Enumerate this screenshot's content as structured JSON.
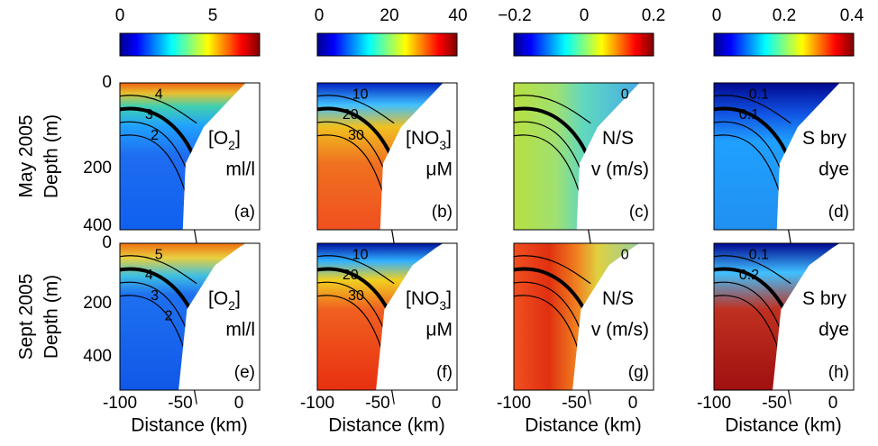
{
  "colorbars": [
    {
      "ticks": [
        "0",
        "5"
      ]
    },
    {
      "ticks": [
        "0",
        "20",
        "40"
      ]
    },
    {
      "ticks": [
        "−0.2",
        "0",
        "0.2"
      ]
    },
    {
      "ticks": [
        "0",
        "0.2",
        "0.4"
      ]
    }
  ],
  "rows": [
    {
      "label": "May 2005",
      "axis_label": "Depth (m)",
      "depth_ticks": [
        "0",
        "200",
        "400"
      ]
    },
    {
      "label": "Sept 2005",
      "axis_label": "Depth (m)",
      "depth_ticks": [
        "0",
        "200",
        "400"
      ]
    }
  ],
  "panels": [
    [
      {
        "name_parts": [
          "[O",
          "2",
          "]"
        ],
        "unit": "ml/l",
        "letter": "(a)",
        "contour_labels": [
          "4",
          "3",
          "2"
        ]
      },
      {
        "name_parts": [
          "[NO",
          "3",
          "]"
        ],
        "unit": "μM",
        "letter": "(b)",
        "contour_labels": [
          "10",
          "20",
          "30"
        ]
      },
      {
        "name_parts": [
          "N/S"
        ],
        "unit": "v (m/s)",
        "letter": "(c)",
        "contour_labels": [
          "0"
        ]
      },
      {
        "name_parts": [
          "S bry"
        ],
        "unit": "dye",
        "letter": "(d)",
        "contour_labels": [
          "0.1",
          "0.1"
        ]
      }
    ],
    [
      {
        "name_parts": [
          "[O",
          "2",
          "]"
        ],
        "unit": "ml/l",
        "letter": "(e)",
        "contour_labels": [
          "5",
          "4",
          "3",
          "2"
        ]
      },
      {
        "name_parts": [
          "[NO",
          "3",
          "]"
        ],
        "unit": "μM",
        "letter": "(f)",
        "contour_labels": [
          "10",
          "20",
          "30"
        ]
      },
      {
        "name_parts": [
          "N/S"
        ],
        "unit": "v (m/s)",
        "letter": "(g)",
        "contour_labels": [
          "0"
        ]
      },
      {
        "name_parts": [
          "S bry"
        ],
        "unit": "dye",
        "letter": "(h)",
        "contour_labels": [
          "0.1",
          "0.2"
        ]
      }
    ]
  ],
  "x_ticks": [
    "-100",
    "-50",
    "0"
  ],
  "x_axis_label": "Distance (km)"
}
